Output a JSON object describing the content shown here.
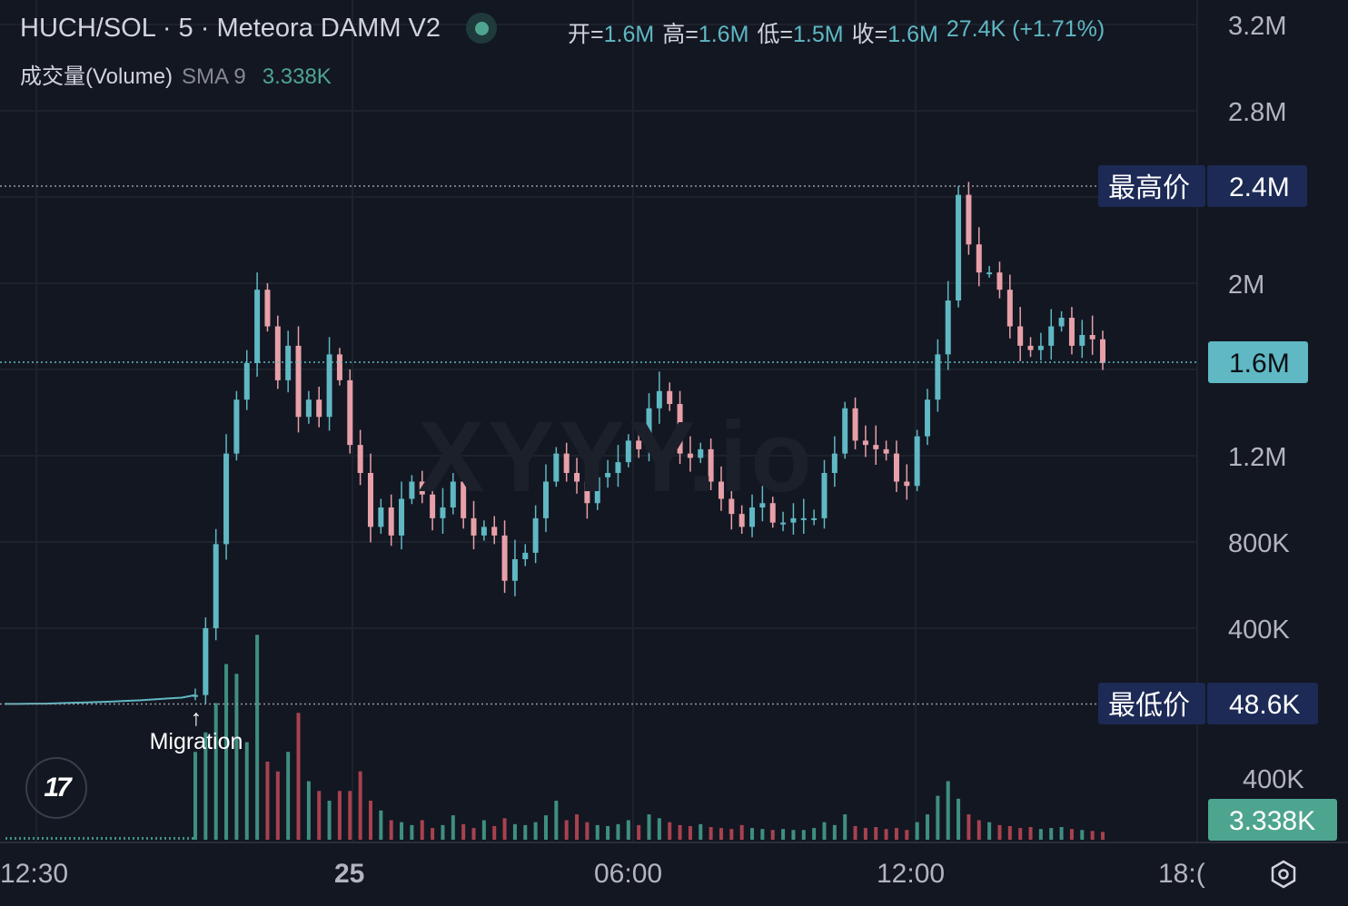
{
  "header": {
    "title": "HUCH/SOL · 5 · Meteora DAMM V2",
    "status_color": "#4ea58f",
    "ohlc": [
      {
        "key": "开=",
        "value": "1.6M"
      },
      {
        "key": "高=",
        "value": "1.6M"
      },
      {
        "key": "低=",
        "value": "1.5M"
      },
      {
        "key": "收=",
        "value": "1.6M"
      }
    ],
    "change": "27.4K (+1.71%)"
  },
  "volume_legend": {
    "label": "成交量(Volume)",
    "sma": "SMA 9",
    "value": "3.338K"
  },
  "watermark": "XYYY.io",
  "annotation": {
    "arrow": "↑",
    "text": "Migration"
  },
  "logo": "TV",
  "settings_icon": "settings-icon",
  "chart_data": {
    "type": "candlestick",
    "colors": {
      "up": "#5fb8c3",
      "down": "#e8a0a8",
      "vol_up": "#3f8f80",
      "vol_down": "#a8424f",
      "background": "#131722"
    },
    "price_axis": {
      "ticks": [
        "3.2M",
        "2.8M",
        "2.4M",
        "2M",
        "1.6M",
        "1.2M",
        "800K",
        "400K"
      ],
      "tick_values": [
        3.2,
        2.8,
        2.4,
        2.0,
        1.6,
        1.2,
        0.8,
        0.4
      ],
      "unit": "M",
      "range": [
        0.0,
        3.2
      ]
    },
    "time_axis": {
      "ticks": [
        "12:30",
        "25",
        "06:00",
        "12:00",
        "18:("
      ]
    },
    "markers": {
      "high": {
        "label": "最高价",
        "value_label": "2.4M",
        "value": 2.41
      },
      "low": {
        "label": "最低价",
        "value_label": "48.6K",
        "value": 0.0486
      },
      "last": {
        "value_label": "1.6M",
        "value": 1.63
      },
      "volume_last": {
        "value_label": "3.338K"
      },
      "volume_tick": "400K"
    },
    "pre_migration_close": [
      0.049,
      0.049,
      0.05,
      0.05,
      0.052,
      0.054,
      0.056,
      0.058,
      0.06,
      0.063,
      0.066,
      0.07,
      0.074,
      0.078,
      0.09
    ],
    "close": [
      0.09,
      0.4,
      0.79,
      1.21,
      1.46,
      1.63,
      1.97,
      1.8,
      1.55,
      1.71,
      1.38,
      1.46,
      1.38,
      1.67,
      1.55,
      1.25,
      1.12,
      0.87,
      0.96,
      0.83,
      1.0,
      1.08,
      1.02,
      0.91,
      0.96,
      1.08,
      0.91,
      0.83,
      0.87,
      0.83,
      0.62,
      0.72,
      0.75,
      0.91,
      1.08,
      1.21,
      1.12,
      1.08,
      0.98,
      1.1,
      1.12,
      1.17,
      1.27,
      1.23,
      1.42,
      1.5,
      1.44,
      1.21,
      1.19,
      1.23,
      1.08,
      1.0,
      0.93,
      0.87,
      0.96,
      0.98,
      0.89,
      0.89,
      0.91,
      0.91,
      0.91,
      1.12,
      1.21,
      1.42,
      1.27,
      1.25,
      1.23,
      1.21,
      1.08,
      1.06,
      1.29,
      1.46,
      1.67,
      1.92,
      2.41,
      2.18,
      2.05,
      2.05,
      1.97,
      1.8,
      1.71,
      1.69,
      1.71,
      1.8,
      1.84,
      1.71,
      1.76,
      1.74,
      1.63
    ],
    "volume_k": [
      900,
      1100,
      1400,
      1800,
      1700,
      1000,
      2100,
      800,
      700,
      900,
      1300,
      600,
      500,
      400,
      500,
      500,
      700,
      400,
      300,
      200,
      180,
      150,
      200,
      120,
      150,
      250,
      160,
      120,
      200,
      140,
      220,
      160,
      150,
      180,
      250,
      400,
      200,
      260,
      180,
      150,
      140,
      160,
      200,
      150,
      260,
      220,
      180,
      150,
      140,
      160,
      130,
      120,
      110,
      150,
      120,
      110,
      100,
      110,
      100,
      100,
      120,
      180,
      150,
      260,
      140,
      120,
      130,
      110,
      120,
      100,
      180,
      260,
      450,
      600,
      420,
      260,
      200,
      180,
      150,
      140,
      120,
      130,
      110,
      120,
      130,
      110,
      100,
      90,
      80
    ]
  }
}
